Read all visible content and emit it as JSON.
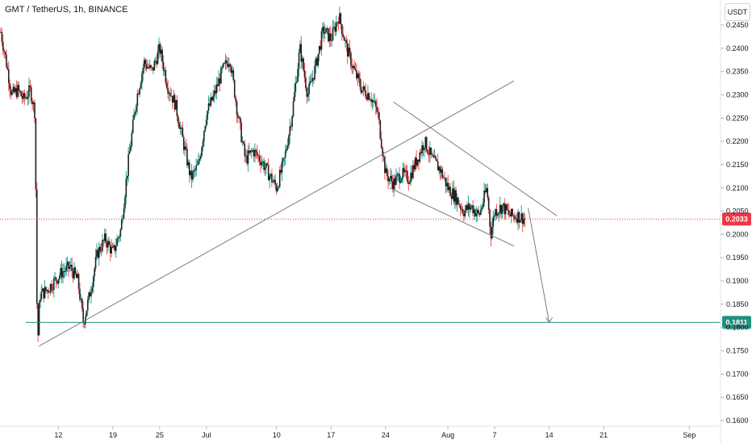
{
  "header": {
    "symbol_title": "GMT / TetherUS, 1h, BINANCE",
    "currency": "USDT"
  },
  "colors": {
    "up": "#26a69a",
    "down": "#ef5350",
    "candle_body": "#222222",
    "current_price": "#f23645",
    "target_level": "#22917f",
    "drawing": "#787b86"
  },
  "chart_data": {
    "type": "candlestick",
    "title": "GMT / TetherUS, 1h, BINANCE",
    "ylim": [
      0.16,
      0.2475
    ],
    "y_ticks": [
      "0.2450",
      "0.2400",
      "0.2350",
      "0.2300",
      "0.2250",
      "0.2200",
      "0.2150",
      "0.2100",
      "0.2050",
      "0.2000",
      "0.1950",
      "0.1900",
      "0.1850",
      "0.1800",
      "0.1750",
      "0.1700",
      "0.1650",
      "0.1600"
    ],
    "x_ticks": [
      {
        "label": "12",
        "x": 12
      },
      {
        "label": "19",
        "x": 19
      },
      {
        "label": "25",
        "x": 25
      },
      {
        "label": "Jul",
        "x": 31
      },
      {
        "label": "10",
        "x": 40
      },
      {
        "label": "17",
        "x": 47
      },
      {
        "label": "24",
        "x": 54
      },
      {
        "label": "Aug",
        "x": 62
      },
      {
        "label": "7",
        "x": 68
      },
      {
        "label": "14",
        "x": 75
      },
      {
        "label": "21",
        "x": 82
      },
      {
        "label": "Sep",
        "x": 93
      }
    ],
    "xlim": [
      4.5,
      97
    ],
    "price_path": [
      [
        4.6,
        0.2435
      ],
      [
        5.2,
        0.238
      ],
      [
        6.0,
        0.23
      ],
      [
        6.8,
        0.231
      ],
      [
        7.5,
        0.229
      ],
      [
        8.4,
        0.231
      ],
      [
        9.0,
        0.226
      ],
      [
        9.3,
        0.175
      ],
      [
        9.6,
        0.187
      ],
      [
        10.5,
        0.188
      ],
      [
        11.5,
        0.19
      ],
      [
        12.5,
        0.192
      ],
      [
        13.5,
        0.193
      ],
      [
        14.5,
        0.19
      ],
      [
        15.2,
        0.181
      ],
      [
        16.0,
        0.187
      ],
      [
        17.0,
        0.196
      ],
      [
        18.0,
        0.199
      ],
      [
        19.0,
        0.196
      ],
      [
        20.0,
        0.201
      ],
      [
        21.0,
        0.216
      ],
      [
        22.0,
        0.229
      ],
      [
        23.0,
        0.237
      ],
      [
        24.0,
        0.235
      ],
      [
        25.0,
        0.24
      ],
      [
        26.0,
        0.232
      ],
      [
        27.0,
        0.228
      ],
      [
        28.0,
        0.22
      ],
      [
        29.0,
        0.212
      ],
      [
        30.0,
        0.215
      ],
      [
        31.0,
        0.226
      ],
      [
        32.0,
        0.23
      ],
      [
        33.0,
        0.235
      ],
      [
        34.0,
        0.238
      ],
      [
        35.0,
        0.226
      ],
      [
        36.0,
        0.216
      ],
      [
        37.0,
        0.218
      ],
      [
        38.0,
        0.216
      ],
      [
        39.0,
        0.213
      ],
      [
        40.0,
        0.21
      ],
      [
        41.0,
        0.216
      ],
      [
        42.0,
        0.226
      ],
      [
        43.0,
        0.24
      ],
      [
        44.0,
        0.23
      ],
      [
        45.0,
        0.236
      ],
      [
        46.0,
        0.244
      ],
      [
        47.0,
        0.242
      ],
      [
        48.0,
        0.247
      ],
      [
        49.0,
        0.24
      ],
      [
        50.0,
        0.235
      ],
      [
        51.0,
        0.231
      ],
      [
        52.0,
        0.23
      ],
      [
        53.0,
        0.226
      ],
      [
        54.0,
        0.213
      ],
      [
        55.0,
        0.211
      ],
      [
        56.0,
        0.213
      ],
      [
        57.0,
        0.212
      ],
      [
        58.0,
        0.216
      ],
      [
        59.0,
        0.22
      ],
      [
        60.0,
        0.216
      ],
      [
        61.0,
        0.214
      ],
      [
        62.0,
        0.21
      ],
      [
        63.0,
        0.208
      ],
      [
        64.0,
        0.205
      ],
      [
        65.0,
        0.206
      ],
      [
        66.0,
        0.204
      ],
      [
        67.0,
        0.21
      ],
      [
        67.5,
        0.2
      ],
      [
        68.0,
        0.205
      ],
      [
        69.0,
        0.206
      ],
      [
        70.0,
        0.204
      ],
      [
        71.0,
        0.204
      ],
      [
        72.0,
        0.2033
      ]
    ],
    "current_price": {
      "value": 0.2033,
      "label": "0.2033"
    },
    "target_level": {
      "value": 0.1811,
      "label": "0.1811"
    },
    "drawings": {
      "rising_trendline": [
        [
          9.5,
          0.176
        ],
        [
          70.5,
          0.233
        ]
      ],
      "falling_channel_upper": [
        [
          55.0,
          0.2285
        ],
        [
          76.0,
          0.204
        ]
      ],
      "falling_channel_lower": [
        [
          54.5,
          0.21
        ],
        [
          70.5,
          0.1975
        ]
      ],
      "projection_arrow": [
        [
          72.3,
          0.2057
        ],
        [
          75.0,
          0.1811
        ]
      ]
    }
  }
}
